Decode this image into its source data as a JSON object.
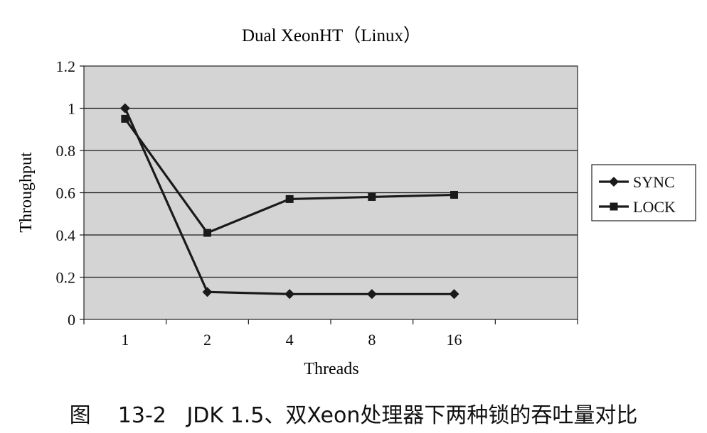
{
  "caption": "图    13-2   JDK 1.5、双Xeon处理器下两种锁的吞吐量对比",
  "chart_data": {
    "type": "line",
    "title": "Dual XeonHT（Linux）",
    "xlabel": "Threads",
    "ylabel": "Throughput",
    "categories": [
      "1",
      "2",
      "4",
      "8",
      "16"
    ],
    "y_ticks": [
      "0",
      "0.2",
      "0.4",
      "0.6",
      "0.8",
      "1",
      "1.2"
    ],
    "ylim": [
      0,
      1.2
    ],
    "grid": true,
    "legend_position": "right",
    "plot_background": "#d4d4d4",
    "line_color": "#1a1a1a",
    "series": [
      {
        "name": "SYNC",
        "marker": "diamond",
        "values": [
          1.0,
          0.13,
          0.12,
          0.12,
          0.12
        ]
      },
      {
        "name": "LOCK",
        "marker": "square",
        "values": [
          0.95,
          0.41,
          0.57,
          0.58,
          0.59
        ]
      }
    ]
  }
}
